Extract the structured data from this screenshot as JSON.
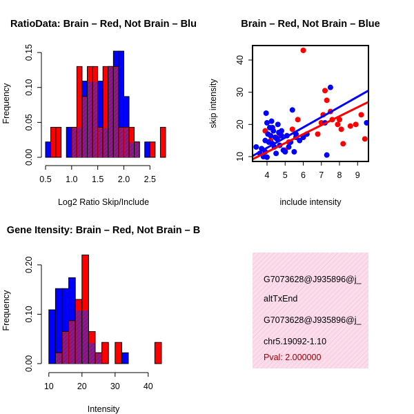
{
  "colors": {
    "red": "#ff0000",
    "blue": "#0000ff",
    "purple": "#8b1a8b",
    "info_bg": "#fadcea",
    "pval": "#a00000"
  },
  "chart_data": [
    {
      "type": "bar",
      "id": "ratio-hist",
      "title": "RatioData: Brain – Red, Not Brain – Blu",
      "xlabel": "Log2 Ratio Skip/Include",
      "ylabel": "Frequency",
      "xlim": [
        0.5,
        2.8
      ],
      "ylim": [
        0,
        0.16
      ],
      "xticks": [
        "0.5",
        "1.0",
        "1.5",
        "2.0",
        "2.5"
      ],
      "yticks": [
        "0.00",
        "0.05",
        "0.10",
        "0.15"
      ],
      "bin_width": 0.1,
      "bin_starts": [
        0.5,
        0.6,
        0.7,
        0.8,
        0.9,
        1.0,
        1.1,
        1.2,
        1.3,
        1.4,
        1.5,
        1.6,
        1.7,
        1.8,
        1.9,
        2.0,
        2.1,
        2.2,
        2.3,
        2.4,
        2.5,
        2.6,
        2.7
      ],
      "series": [
        {
          "name": "Brain",
          "color": "red",
          "values": [
            0,
            0.043,
            0.043,
            0,
            0,
            0.043,
            0.13,
            0.087,
            0.13,
            0.13,
            0.043,
            0.13,
            0.13,
            0.13,
            0.043,
            0.043,
            0.043,
            0.022,
            0,
            0,
            0.022,
            0,
            0.043
          ]
        },
        {
          "name": "Not Brain",
          "color": "blue",
          "values": [
            0.022,
            0,
            0,
            0,
            0.043,
            0.043,
            0.043,
            0.109,
            0.109,
            0.109,
            0.109,
            0.043,
            0.13,
            0.152,
            0.152,
            0.087,
            0.022,
            0.022,
            0,
            0.022,
            0,
            0,
            0
          ]
        }
      ]
    },
    {
      "type": "scatter",
      "id": "intensity-scatter",
      "title": "Brain – Red, Not Brain – Blue",
      "xlabel": "include intensity",
      "ylabel": "skip intensity",
      "xlim": [
        3.2,
        9.6
      ],
      "ylim": [
        8.5,
        44.5
      ],
      "xticks": [
        "4",
        "5",
        "6",
        "7",
        "8",
        "9"
      ],
      "yticks": [
        "10",
        "20",
        "30",
        "40"
      ],
      "series": [
        {
          "name": "Brain",
          "color": "red",
          "x": [
            3.9,
            5.2,
            5.4,
            5.7,
            6.0,
            6.2,
            6.8,
            7.0,
            7.1,
            7.2,
            7.3,
            7.5,
            7.6,
            7.9,
            8.0,
            8.1,
            8.2,
            8.6,
            8.9,
            9.2,
            9.4,
            4.2,
            4.6,
            5.0
          ],
          "y": [
            18.0,
            14.5,
            18.5,
            21.5,
            43.0,
            17.0,
            17.0,
            20.5,
            23.0,
            30.5,
            27.5,
            24.0,
            21.5,
            20.0,
            21.5,
            18.5,
            14.0,
            19.5,
            20.0,
            23.0,
            15.5,
            15.0,
            16.0,
            12.0
          ]
        },
        {
          "name": "Not Brain",
          "color": "blue",
          "x": [
            3.4,
            3.6,
            3.7,
            3.8,
            3.9,
            3.95,
            4.0,
            4.05,
            4.1,
            4.15,
            4.2,
            4.25,
            4.3,
            4.35,
            4.4,
            4.45,
            4.5,
            4.55,
            4.6,
            4.65,
            4.7,
            4.8,
            4.9,
            5.0,
            5.1,
            5.2,
            5.3,
            5.4,
            5.5,
            5.6,
            5.8,
            6.0,
            6.2,
            7.2,
            7.3,
            7.5,
            9.5,
            4.0,
            4.3,
            4.8,
            5.6,
            3.9
          ],
          "y": [
            13.0,
            11.0,
            12.5,
            10.0,
            15.0,
            23.5,
            9.8,
            17.0,
            14.5,
            19.0,
            16.5,
            21.0,
            14.0,
            18.0,
            13.0,
            16.0,
            11.0,
            15.5,
            20.0,
            17.5,
            13.5,
            18.0,
            12.0,
            11.5,
            16.5,
            13.0,
            14.5,
            24.5,
            11.5,
            16.0,
            15.0,
            16.0,
            17.0,
            20.5,
            10.5,
            31.5,
            20.5,
            20.5,
            19.0,
            16.5,
            17.0,
            11.5
          ]
        }
      ],
      "fits": [
        {
          "name": "Brain",
          "color": "red",
          "x": [
            3.2,
            9.6
          ],
          "y": [
            9.2,
            27.0
          ]
        },
        {
          "name": "Not Brain",
          "color": "blue",
          "x": [
            3.2,
            9.6
          ],
          "y": [
            10.2,
            30.5
          ]
        }
      ]
    },
    {
      "type": "bar",
      "id": "intensity-hist",
      "title": "Gene Itensity: Brain – Red, Not Brain – B",
      "xlabel": "Intensity",
      "ylabel": "Frequency",
      "xlim": [
        9,
        44
      ],
      "ylim": [
        0,
        0.225
      ],
      "xticks": [
        "10",
        "20",
        "30",
        "40"
      ],
      "yticks": [
        "0.00",
        "0.10",
        "0.20"
      ],
      "bin_width": 2,
      "bin_starts": [
        10,
        12,
        14,
        16,
        18,
        20,
        22,
        24,
        26,
        28,
        30,
        32,
        34,
        36,
        38,
        40,
        42
      ],
      "series": [
        {
          "name": "Brain",
          "color": "red",
          "values": [
            0,
            0.022,
            0.065,
            0.087,
            0.13,
            0.22,
            0.065,
            0.022,
            0.043,
            0,
            0.043,
            0,
            0,
            0,
            0,
            0,
            0.043
          ]
        },
        {
          "name": "Not Brain",
          "color": "blue",
          "values": [
            0.109,
            0.152,
            0.152,
            0.174,
            0.109,
            0.109,
            0.043,
            0.022,
            0,
            0,
            0,
            0.022,
            0,
            0,
            0,
            0,
            0
          ]
        }
      ]
    }
  ],
  "info_box": {
    "line1": "G7073628@J935896@j_",
    "line2": "altTxEnd",
    "line3": "G7073628@J935896@j_",
    "line4": "chr5.19092-1.10",
    "pval": "Pval: 2.000000"
  }
}
